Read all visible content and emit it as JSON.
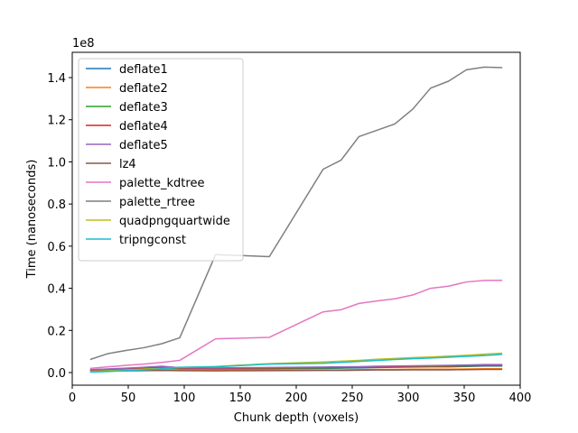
{
  "chart_data": {
    "type": "line",
    "title": "",
    "xlabel": "Chunk depth (voxels)",
    "ylabel": "Time (nanoseconds)",
    "y_offset_label": "1e8",
    "xlim": [
      0,
      400
    ],
    "ylim": [
      -0.06,
      1.52
    ],
    "y_scale_factor": 100000000,
    "xticks": [
      0,
      50,
      100,
      150,
      200,
      250,
      300,
      350,
      400
    ],
    "yticks": [
      0.0,
      0.2,
      0.4,
      0.6,
      0.8,
      1.0,
      1.2,
      1.4
    ],
    "ytick_labels": [
      "0.0",
      "0.2",
      "0.4",
      "0.6",
      "0.8",
      "1.0",
      "1.2",
      "1.4"
    ],
    "grid": false,
    "legend_position": "upper-left",
    "x": [
      16,
      32,
      48,
      64,
      80,
      96,
      128,
      176,
      224,
      240,
      256,
      272,
      288,
      304,
      320,
      336,
      352,
      368,
      384
    ],
    "series": [
      {
        "name": "deflate1",
        "color": "#1f77b4",
        "values": [
          0.01,
          0.012,
          0.015,
          0.018,
          0.022,
          0.017,
          0.016,
          0.018,
          0.02,
          0.021,
          0.022,
          0.024,
          0.025,
          0.026,
          0.027,
          0.027,
          0.029,
          0.031,
          0.031
        ]
      },
      {
        "name": "deflate2",
        "color": "#ff7f0e",
        "values": [
          0.008,
          0.01,
          0.012,
          0.014,
          0.016,
          0.013,
          0.011,
          0.012,
          0.013,
          0.013,
          0.014,
          0.015,
          0.015,
          0.016,
          0.016,
          0.016,
          0.017,
          0.018,
          0.018
        ]
      },
      {
        "name": "deflate3",
        "color": "#2ca02c",
        "values": [
          0.012,
          0.014,
          0.017,
          0.02,
          0.024,
          0.019,
          0.018,
          0.02,
          0.022,
          0.023,
          0.024,
          0.026,
          0.027,
          0.028,
          0.029,
          0.029,
          0.031,
          0.033,
          0.033
        ]
      },
      {
        "name": "deflate4",
        "color": "#d62728",
        "values": [
          0.013,
          0.016,
          0.019,
          0.023,
          0.027,
          0.021,
          0.02,
          0.022,
          0.024,
          0.025,
          0.026,
          0.028,
          0.029,
          0.03,
          0.031,
          0.031,
          0.033,
          0.035,
          0.035
        ]
      },
      {
        "name": "deflate5",
        "color": "#9467bd",
        "values": [
          0.014,
          0.017,
          0.021,
          0.025,
          0.03,
          0.023,
          0.022,
          0.024,
          0.026,
          0.027,
          0.028,
          0.03,
          0.031,
          0.032,
          0.033,
          0.034,
          0.036,
          0.038,
          0.038
        ]
      },
      {
        "name": "lz4",
        "color": "#8c564b",
        "values": [
          0.006,
          0.007,
          0.008,
          0.009,
          0.01,
          0.009,
          0.008,
          0.009,
          0.01,
          0.01,
          0.011,
          0.012,
          0.012,
          0.013,
          0.013,
          0.013,
          0.014,
          0.015,
          0.015
        ]
      },
      {
        "name": "palette_kdtree",
        "color": "#e377c2",
        "values": [
          0.02,
          0.027,
          0.034,
          0.04,
          0.048,
          0.058,
          0.16,
          0.167,
          0.288,
          0.298,
          0.328,
          0.34,
          0.35,
          0.368,
          0.4,
          0.41,
          0.43,
          0.437,
          0.438
        ]
      },
      {
        "name": "palette_rtree",
        "color": "#7f7f7f",
        "values": [
          0.062,
          0.09,
          0.105,
          0.118,
          0.137,
          0.165,
          0.56,
          0.55,
          0.965,
          1.008,
          1.12,
          1.15,
          1.18,
          1.25,
          1.35,
          1.383,
          1.437,
          1.45,
          1.447
        ]
      },
      {
        "name": "quadpngquartwide",
        "color": "#bcbd22",
        "values": [
          0.005,
          0.008,
          0.012,
          0.016,
          0.02,
          0.024,
          0.029,
          0.042,
          0.05,
          0.054,
          0.058,
          0.063,
          0.067,
          0.071,
          0.074,
          0.078,
          0.082,
          0.087,
          0.092
        ]
      },
      {
        "name": "tripngconst",
        "color": "#17becf",
        "values": [
          0.002,
          0.005,
          0.009,
          0.013,
          0.018,
          0.025,
          0.027,
          0.04,
          0.044,
          0.048,
          0.053,
          0.057,
          0.062,
          0.066,
          0.069,
          0.073,
          0.077,
          0.081,
          0.086
        ]
      }
    ]
  }
}
